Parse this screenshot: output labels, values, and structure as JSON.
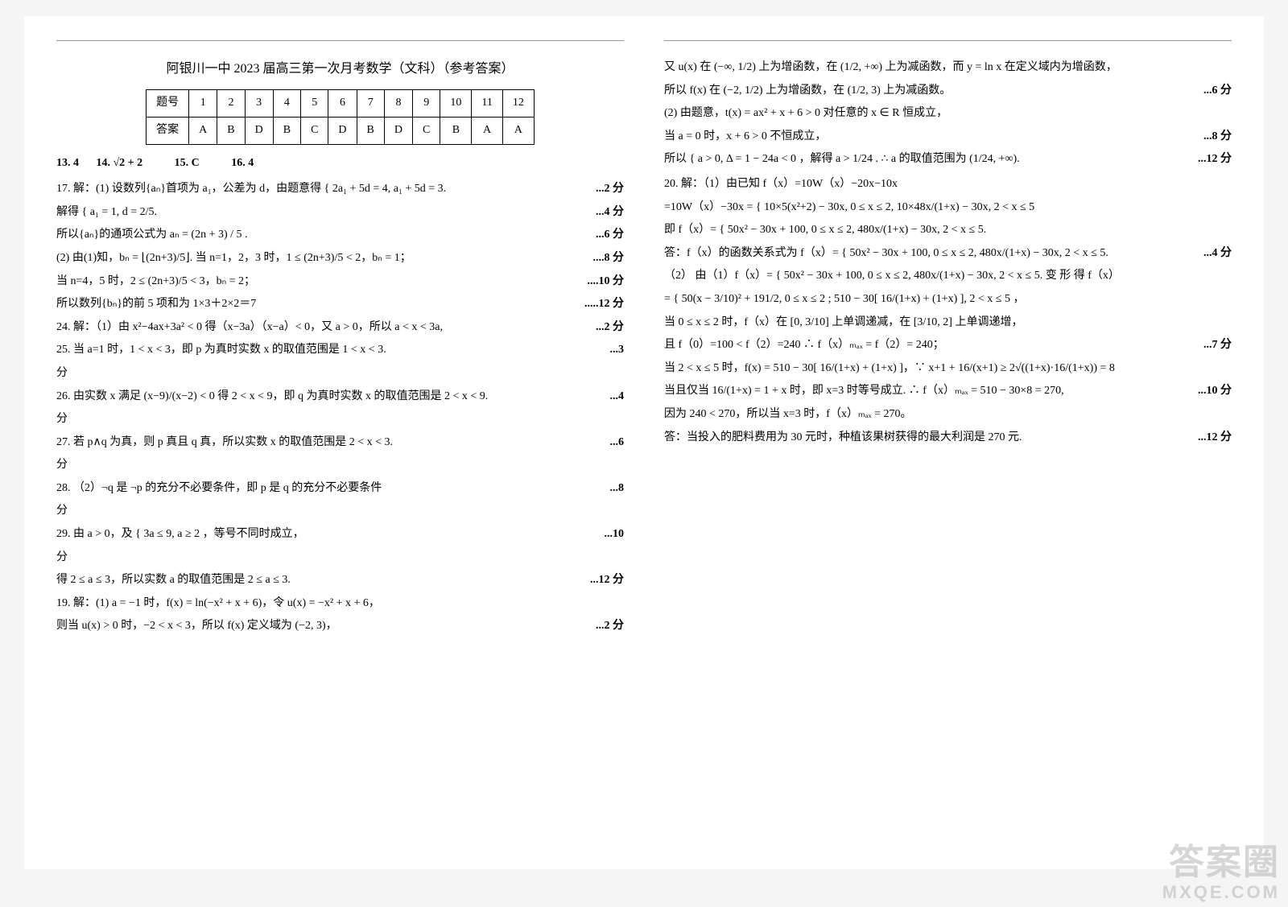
{
  "title": "阿银川一中 2023 届高三第一次月考数学（文科）（参考答案）",
  "answer_table": {
    "header_label": "题号",
    "answer_label": "答案",
    "numbers": [
      "1",
      "2",
      "3",
      "4",
      "5",
      "6",
      "7",
      "8",
      "9",
      "10",
      "11",
      "12"
    ],
    "answers": [
      "A",
      "B",
      "D",
      "B",
      "C",
      "D",
      "B",
      "D",
      "C",
      "B",
      "A",
      "A"
    ]
  },
  "fill_in": {
    "q13": "13. 4",
    "q14": "14. √2 + 2",
    "q15": "15. C",
    "q16": "16. 4"
  },
  "left_lines": [
    {
      "text": "17. 解：(1) 设数列{aₙ}首项为 a₁，公差为 d，由题意得 { 2a₁ + 5d = 4,  a₁ + 5d = 3.",
      "pts": "...2 分"
    },
    {
      "text": "解得 { a₁ = 1,  d = 2/5.",
      "pts": "...4 分"
    },
    {
      "text": "所以{aₙ}的通项公式为 aₙ = (2n + 3) / 5 .",
      "pts": "...6 分"
    },
    {
      "text": "(2) 由(1)知，bₙ = ⌊(2n+3)/5⌋. 当 n=1，2，3 时，1 ≤ (2n+3)/5 < 2，bₙ = 1；",
      "pts": "....8 分"
    },
    {
      "text": "当 n=4，5 时，2 ≤ (2n+3)/5 < 3，bₙ = 2；",
      "pts": "....10 分"
    },
    {
      "text": "所以数列{bₙ}的前 5 项和为 1×3＋2×2＝7",
      "pts": ".....12 分"
    },
    {
      "text": "24. 解：（1）由 x²−4ax+3a² < 0 得（x−3a）（x−a）< 0，又 a > 0，所以 a < x < 3a,",
      "pts": "...2 分"
    },
    {
      "text": "25. 当 a=1 时，1 < x < 3，即 p 为真时实数 x 的取值范围是 1 < x < 3.",
      "pts": "...3"
    },
    {
      "text": "分",
      "pts": ""
    },
    {
      "text": "26. 由实数 x 满足 (x−9)/(x−2) < 0 得 2 < x < 9，即 q 为真时实数 x 的取值范围是 2 < x < 9.",
      "pts": "...4"
    },
    {
      "text": "分",
      "pts": ""
    },
    {
      "text": "27. 若 p∧q 为真，则 p 真且 q 真，所以实数 x 的取值范围是 2 < x < 3.",
      "pts": "...6"
    },
    {
      "text": "分",
      "pts": ""
    },
    {
      "text": "28. （2）¬q 是 ¬p 的充分不必要条件，即 p 是 q 的充分不必要条件",
      "pts": "...8"
    },
    {
      "text": "分",
      "pts": ""
    },
    {
      "text": "29. 由 a > 0，及 { 3a ≤ 9,  a ≥ 2 ，等号不同时成立，",
      "pts": "...10"
    },
    {
      "text": "分",
      "pts": ""
    },
    {
      "text": "得 2 ≤ a ≤ 3，所以实数 a 的取值范围是 2 ≤ a ≤ 3.",
      "pts": "...12 分"
    },
    {
      "text": "19. 解：(1) a = −1 时，f(x) = ln(−x² + x + 6)，令 u(x) = −x² + x + 6，",
      "pts": ""
    },
    {
      "text": "则当 u(x) > 0 时，−2 < x < 3，所以 f(x) 定义域为 (−2, 3)，",
      "pts": "...2 分"
    }
  ],
  "right_lines": [
    {
      "text": "又 u(x) 在 (−∞, 1/2) 上为增函数，在 (1/2, +∞) 上为减函数，而 y = ln x 在定义域内为增函数，",
      "pts": ""
    },
    {
      "text": "所以 f(x) 在 (−2, 1/2) 上为增函数，在 (1/2, 3) 上为减函数。",
      "pts": "...6 分"
    },
    {
      "text": "(2) 由题意，t(x) = ax² + x + 6 > 0 对任意的 x ∈ R 恒成立，",
      "pts": ""
    },
    {
      "text": "当 a = 0 时，x + 6 > 0 不恒成立，",
      "pts": "...8 分"
    },
    {
      "text": "所以 { a > 0,  Δ = 1 − 24a < 0 ，解得 a > 1/24 . ∴ a 的取值范围为 (1/24, +∞).",
      "pts": "...12 分"
    },
    {
      "text": "",
      "pts": ""
    },
    {
      "text": "20. 解：（1）由已知 f（x）=10W（x）−20x−10x",
      "pts": ""
    },
    {
      "text": "=10W（x）−30x = { 10×5(x²+2) − 30x, 0 ≤ x ≤ 2,   10×48x/(1+x) − 30x, 2 < x ≤ 5",
      "pts": ""
    },
    {
      "text": "即 f（x）= { 50x² − 30x + 100, 0 ≤ x ≤ 2,   480x/(1+x) − 30x,  2 < x ≤ 5.",
      "pts": ""
    },
    {
      "text": "答：f（x）的函数关系式为 f（x）= { 50x² − 30x + 100, 0 ≤ x ≤ 2,   480x/(1+x) − 30x,  2 < x ≤ 5.",
      "pts": "...4 分"
    },
    {
      "text": "（2） 由（1）f（x）= { 50x² − 30x + 100, 0 ≤ x ≤ 2,   480x/(1+x) − 30x,  2 < x ≤ 5.   变 形 得 f（x）",
      "pts": ""
    },
    {
      "text": "= { 50(x − 3/10)² + 191/2,  0 ≤ x ≤ 2   ;   510 − 30[ 16/(1+x) + (1+x) ],  2 < x ≤ 5 ，",
      "pts": ""
    },
    {
      "text": "当 0 ≤ x ≤ 2 时，f（x）在 [0, 3/10] 上单调递减，在 [3/10, 2] 上单调递增，",
      "pts": ""
    },
    {
      "text": "且 f（0）=100 < f（2）=240 ∴ f（x）ₘₐₓ = f（2）= 240；",
      "pts": "...7 分"
    },
    {
      "text": "当 2 < x ≤ 5 时，f(x) = 510 − 30[ 16/(1+x) + (1+x) ]，∵ x+1 + 16/(x+1) ≥ 2√((1+x)·16/(1+x)) = 8",
      "pts": ""
    },
    {
      "text": "当且仅当 16/(1+x) = 1 + x 时，即 x=3 时等号成立. ∴ f（x）ₘₐₓ = 510 − 30×8 = 270,",
      "pts": "...10 分"
    },
    {
      "text": "因为 240 < 270，所以当 x=3 时，f（x）ₘₐₓ = 270。",
      "pts": ""
    },
    {
      "text": "答：当投入的肥料费用为 30 元时，种植该果树获得的最大利润是 270 元.",
      "pts": "...12 分"
    }
  ],
  "watermark": {
    "big": "答案圈",
    "small": "MXQE.COM"
  }
}
